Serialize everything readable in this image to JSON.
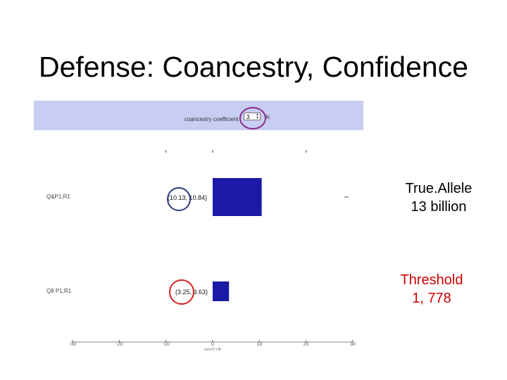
{
  "slide": {
    "title": "Defense: Coancestry, Confidence"
  },
  "screenshot": {
    "toolbar": {
      "coefficient_label": "coancestry coefficient",
      "coefficient_value": "3",
      "coefficient_unit": "%"
    },
    "rows": [
      {
        "label": "Q&P1,R1",
        "interval_label": "(10.13, 10.84)"
      },
      {
        "label": "Q8 P1,R1",
        "interval_label": "(3.25, 3.63)"
      }
    ],
    "x_axis_label": "log10 LR"
  },
  "chart_data": {
    "type": "bar",
    "orientation": "horizontal",
    "categories": [
      "Q&P1,R1",
      "Q8 P1,R1"
    ],
    "values": [
      10.5,
      3.5
    ],
    "intervals": [
      [
        10.13,
        10.84
      ],
      [
        3.25,
        3.63
      ]
    ],
    "xlim": [
      -30,
      30
    ],
    "x_ticks": [
      "-30",
      "-20",
      "-10",
      "0",
      "10",
      "20",
      "30"
    ],
    "xlabel": "log10 LR",
    "bar_color": "#1a1aa6",
    "grid": false
  },
  "annotations": {
    "truallele": {
      "line1": "True.Allele",
      "line2": "13 billion",
      "color": "#000000"
    },
    "threshold": {
      "line1": "Threshold",
      "line2": "1, 778",
      "color": "#cc0000"
    }
  },
  "colors": {
    "toolbar_bg": "#c8cdf2",
    "circle_purple": "#8a2b8a",
    "circle_navy": "#2e3a80",
    "circle_red": "#d42020"
  }
}
